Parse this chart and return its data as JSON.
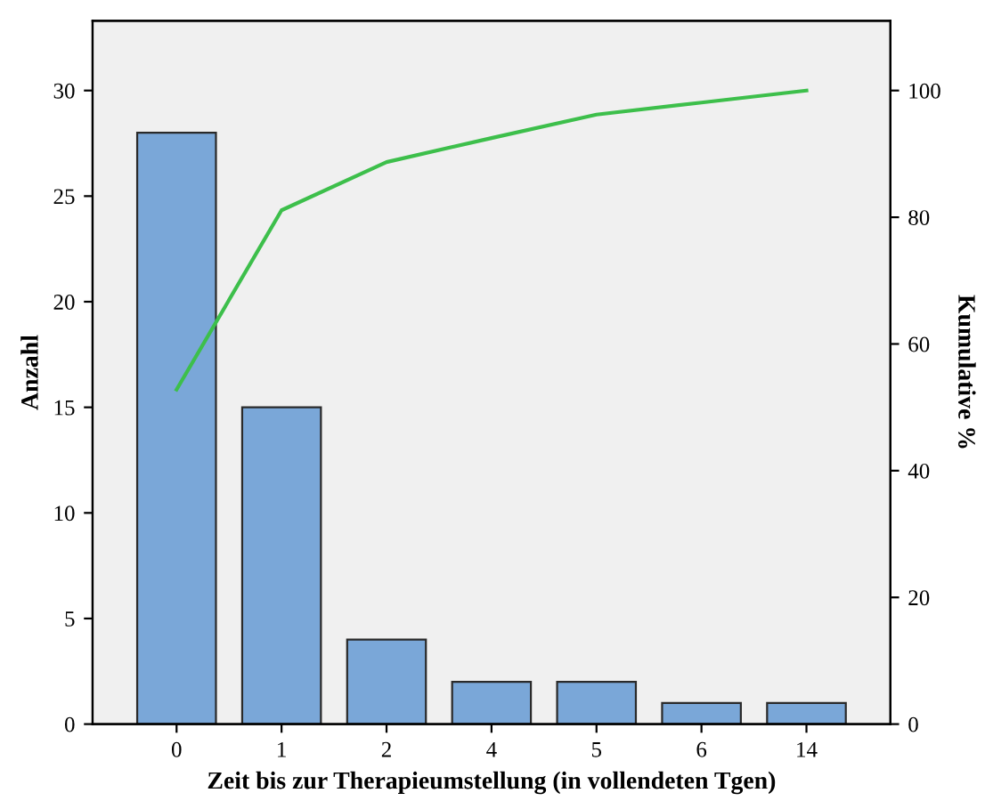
{
  "chart_data": {
    "type": "bar",
    "xlabel": "Zeit bis zur Therapieumstellung (in vollendeten Tgen)",
    "ylabel": "Anzahl",
    "y2label": "Kumulative %",
    "categories": [
      "0",
      "1",
      "2",
      "4",
      "5",
      "6",
      "14"
    ],
    "series": [
      {
        "color": "#7aa7d8",
        "values": [
          28,
          15,
          4,
          2,
          2,
          1,
          1
        ]
      },
      {
        "type": "line",
        "axis": "y2",
        "color": "#3dbf4b",
        "values": [
          52.8,
          81.1,
          88.7,
          92.5,
          96.2,
          98.1,
          100
        ]
      }
    ],
    "ylim": [
      0,
      33.3
    ],
    "yticks": [
      0,
      5,
      10,
      15,
      20,
      25,
      30
    ],
    "y2lim": [
      0,
      111
    ],
    "y2ticks": [
      0,
      20,
      40,
      60,
      80,
      100
    ],
    "grid": false,
    "legend": false,
    "marker": "none",
    "line_style": "solid"
  }
}
